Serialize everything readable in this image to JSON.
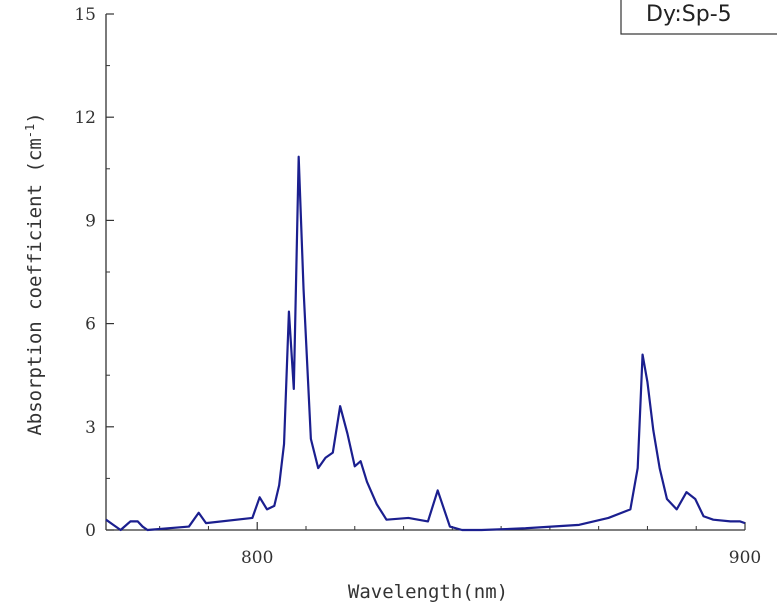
{
  "chart_data": {
    "type": "line",
    "title": "",
    "xlabel": "Wavelength(nm)",
    "ylabel": "Absorption coefficient (cm",
    "ylabel_sup": "-1",
    "ylabel_end": ")",
    "xlim": [
      769,
      900
    ],
    "ylim": [
      0,
      15
    ],
    "x_ticks": [
      800,
      900
    ],
    "x_tick_labels": [
      "800",
      "900"
    ],
    "x_minor_ticks": [
      780,
      790,
      810,
      820,
      830,
      840,
      850,
      860,
      870,
      880,
      890
    ],
    "y_ticks": [
      0,
      3,
      6,
      9,
      12,
      15
    ],
    "y_tick_labels": [
      "0",
      "3",
      "6",
      "9",
      "12",
      "15"
    ],
    "y_minor_ticks": [
      1.5,
      4.5,
      7.5,
      10.5,
      13.5
    ],
    "grid": false,
    "legend_text": "Dy:Sp-5",
    "legend_position": "top-right (partially cropped)",
    "line_color": "#1b1f8f",
    "series": [
      {
        "values_x": [
          769,
          770.5,
          772,
          774,
          775.5,
          776.5,
          777.5,
          786,
          788,
          789.5,
          799,
          800.5,
          802,
          803.5,
          804.5,
          805.5,
          806.5,
          807.5,
          808.5,
          809.5,
          811,
          812.5,
          814,
          815.5,
          817,
          818.5,
          820,
          821.2,
          822.5,
          824.5,
          826.5,
          831,
          835,
          837,
          839.5,
          842,
          846,
          855,
          866,
          872,
          876.5,
          878,
          879,
          880,
          881.2,
          882.5,
          884,
          886,
          888,
          889.8,
          891.5,
          893.5,
          897,
          899,
          900
        ],
        "values_y": [
          0.3,
          0.15,
          0.0,
          0.25,
          0.25,
          0.1,
          0.0,
          0.1,
          0.5,
          0.2,
          0.35,
          0.95,
          0.6,
          0.7,
          1.3,
          2.5,
          6.35,
          4.1,
          10.85,
          7.0,
          2.65,
          1.8,
          2.1,
          2.25,
          3.6,
          2.8,
          1.85,
          2.0,
          1.4,
          0.75,
          0.3,
          0.35,
          0.25,
          1.15,
          0.1,
          0.0,
          0.0,
          0.05,
          0.15,
          0.35,
          0.6,
          1.8,
          5.1,
          4.3,
          2.9,
          1.8,
          0.9,
          0.6,
          1.1,
          0.9,
          0.4,
          0.3,
          0.25,
          0.25,
          0.2
        ]
      }
    ]
  }
}
